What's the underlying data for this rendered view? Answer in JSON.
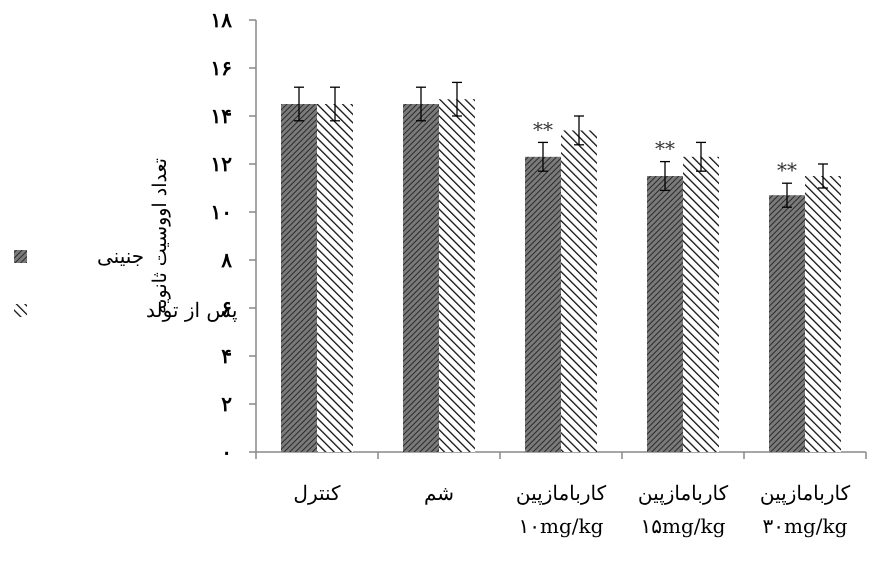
{
  "chart_data": {
    "type": "bar",
    "ylabel": "تعداد اووسیت ثانویه",
    "ylim": [
      0,
      18
    ],
    "yticks": [
      {
        "value": 0,
        "label": "۰"
      },
      {
        "value": 2,
        "label": "۲"
      },
      {
        "value": 4,
        "label": "۴"
      },
      {
        "value": 6,
        "label": "۶"
      },
      {
        "value": 8,
        "label": "۸"
      },
      {
        "value": 10,
        "label": "۱۰"
      },
      {
        "value": 12,
        "label": "۱۲"
      },
      {
        "value": 14,
        "label": "۱۴"
      },
      {
        "value": 16,
        "label": "۱۶"
      },
      {
        "value": 18,
        "label": "۱۸"
      }
    ],
    "categories": [
      [
        "کنترل"
      ],
      [
        "شم"
      ],
      [
        "کاربامازپین",
        "۱۰mg/kg"
      ],
      [
        "کاربامازپین",
        "۱۵mg/kg"
      ],
      [
        "کاربامازپین",
        "۳۰mg/kg"
      ]
    ],
    "series": [
      {
        "name": "جنینی",
        "pattern": "dense-gray",
        "values": [
          14.5,
          14.5,
          12.3,
          11.5,
          10.7
        ],
        "errors": [
          0.7,
          0.7,
          0.6,
          0.6,
          0.5
        ]
      },
      {
        "name": "پس از تولد",
        "pattern": "diagonal-hatch",
        "values": [
          14.5,
          14.7,
          13.4,
          12.3,
          11.5
        ],
        "errors": [
          0.7,
          0.7,
          0.6,
          0.6,
          0.5
        ]
      }
    ],
    "annotations": [
      {
        "category": 2,
        "series": 0,
        "text": "**"
      },
      {
        "category": 3,
        "series": 0,
        "text": "**"
      },
      {
        "category": 4,
        "series": 0,
        "text": "**"
      }
    ],
    "legend_position": "left",
    "grid": false,
    "colors": {
      "bar_dense": "#444444",
      "hatch": "#111111",
      "axis": "#888888"
    }
  }
}
